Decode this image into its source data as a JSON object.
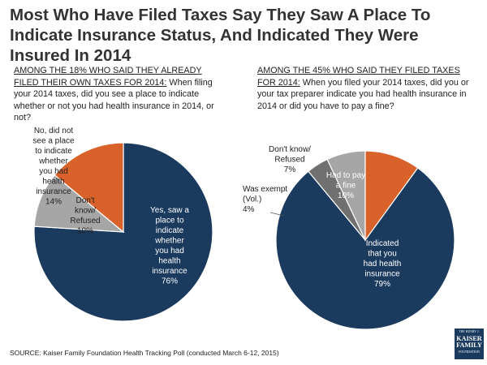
{
  "header": {
    "title": "Most Who Have Filed Taxes Say They Saw A Place To Indicate Insurance Status, And Indicated They Were Insured In 2014"
  },
  "colors": {
    "navy": "#1a3a5e",
    "orange": "#d9622b",
    "gray": "#a6a6a6",
    "darkgray": "#707070"
  },
  "chart_data": [
    {
      "type": "pie",
      "subtitle_lead": "AMONG THE 18% WHO SAID THEY ALREADY FILED THEIR OWN TAXES FOR 2014:",
      "subtitle_rest": " When filing your  2014 taxes, did you see a place to indicate whether or not you had health insurance in 2014, or not?",
      "slices": [
        {
          "lines": [
            "Yes, saw a",
            "place to",
            "indicate",
            "whether",
            "you had",
            "health",
            "insurance",
            "76%"
          ],
          "value": 76,
          "color": "#1a3a5e"
        },
        {
          "lines": [
            "Don't",
            "know/",
            "Refused",
            "10%"
          ],
          "value": 10,
          "color": "#a6a6a6"
        },
        {
          "lines": [
            "No, did not",
            "see a place",
            "to indicate",
            "whether",
            "you had",
            "health",
            "insurance",
            "14%"
          ],
          "value": 14,
          "color": "#d9622b"
        }
      ]
    },
    {
      "type": "pie",
      "subtitle_lead": "AMONG THE 45% WHO SAID THEY FILED TAXES FOR 2014:",
      "subtitle_rest": " When you filed your 2014 taxes, did you or your tax preparer indicate you had health insurance in 2014 or did you have to pay a fine?",
      "slices": [
        {
          "lines": [
            "Indicated",
            "that you",
            "had health",
            "insurance",
            "79%"
          ],
          "value": 79,
          "color": "#1a3a5e"
        },
        {
          "lines": [
            "Was exempt",
            "(Vol.)",
            "4%"
          ],
          "value": 4,
          "color": "#707070"
        },
        {
          "lines": [
            "Don't know/",
            "Refused",
            "7%"
          ],
          "value": 7,
          "color": "#a6a6a6"
        },
        {
          "lines": [
            "Had to pay",
            "a fine",
            "10%"
          ],
          "value": 10,
          "color": "#d9622b"
        }
      ]
    }
  ],
  "footer": {
    "source": "SOURCE: Kaiser Family Foundation Health Tracking Poll (conducted March 6-12, 2015)",
    "logo": {
      "line1": "THE HENRY J.",
      "line2": "KAISER",
      "line3": "FAMILY",
      "line4": "FOUNDATION"
    }
  }
}
